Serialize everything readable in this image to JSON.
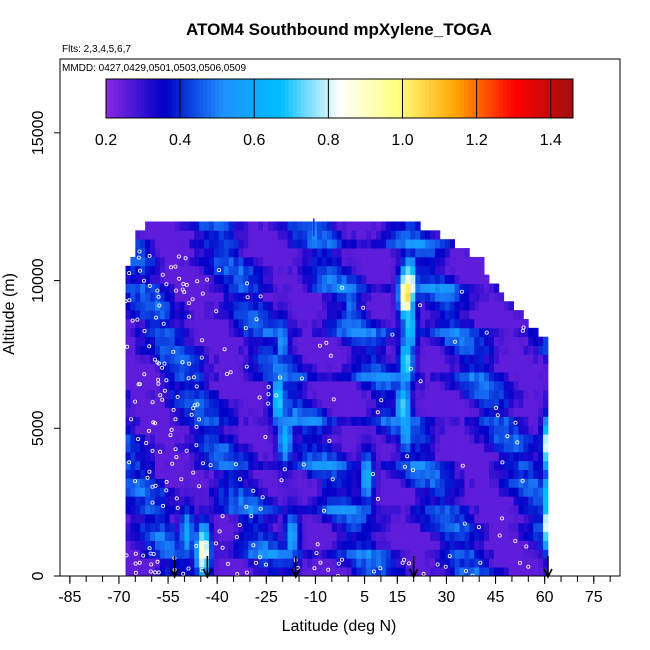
{
  "chart_data": {
    "type": "heatmap",
    "title": "ATOM4 Southbound mpXylene_TOGA",
    "flights_note": "Flts: 2,3,4,5,6,7",
    "dates_note": "MMDD: 0427,0429,0501,0503,0506,0509",
    "xlabel": "Latitude (deg N)",
    "ylabel": "Altitude (m)",
    "xlim": [
      -88,
      83
    ],
    "ylim": [
      0,
      17500
    ],
    "x_ticks": [
      -85,
      -70,
      -55,
      -40,
      -25,
      -10,
      5,
      15,
      30,
      45,
      60,
      75
    ],
    "x_tick_labels": [
      "-85",
      "-70",
      "-55",
      "-40",
      "-25",
      "-10",
      "5",
      "15",
      "30",
      "45",
      "60",
      "75"
    ],
    "x_minor_step": 5,
    "y_ticks": [
      0,
      5000,
      10000,
      15000
    ],
    "y_tick_labels": [
      "0",
      "5000",
      "10000",
      "15000"
    ],
    "colorbar": {
      "min": 0.2,
      "max": 1.46,
      "ticks": [
        0.2,
        0.4,
        0.6,
        0.8,
        1.0,
        1.2,
        1.4
      ],
      "tick_labels": [
        "0.2",
        "0.4",
        "0.6",
        "0.8",
        "1.0",
        "1.2",
        "1.4"
      ],
      "colors": [
        "#8a2be2",
        "#0000c8",
        "#1e90ff",
        "#00bfff",
        "#ffffff",
        "#ffff80",
        "#ffa500",
        "#ff0000",
        "#a01010"
      ]
    },
    "domain_lat_range": [
      -68,
      61
    ],
    "domain_top_alt": 11800,
    "hotspots": [
      {
        "lat": 17,
        "alt": 9400,
        "value": 1.1
      },
      {
        "lat": 18,
        "alt": 9700,
        "value": 0.95
      },
      {
        "lat": 18,
        "alt": 8300,
        "value": 0.72
      },
      {
        "lat": 17,
        "alt": 7100,
        "value": 0.75
      },
      {
        "lat": 16,
        "alt": 5600,
        "value": 0.72
      },
      {
        "lat": 17,
        "alt": 4800,
        "value": 0.6
      },
      {
        "lat": -22,
        "alt": 5800,
        "value": 0.72
      },
      {
        "lat": -20,
        "alt": 4500,
        "value": 0.65
      },
      {
        "lat": -21,
        "alt": 7800,
        "value": 0.55
      },
      {
        "lat": -18,
        "alt": 1200,
        "value": 0.6
      },
      {
        "lat": -45,
        "alt": 700,
        "value": 0.95
      },
      {
        "lat": -50,
        "alt": 1300,
        "value": 0.6
      },
      {
        "lat": 61,
        "alt": 4300,
        "value": 1.15
      },
      {
        "lat": 61,
        "alt": 1600,
        "value": 1.15
      },
      {
        "lat": 60,
        "alt": 2500,
        "value": 0.7
      },
      {
        "lat": 5,
        "alt": 3200,
        "value": 0.62
      },
      {
        "lat": 0,
        "alt": 9000,
        "value": 0.5
      }
    ],
    "arrow_lats": [
      -53,
      -43,
      -16,
      20,
      61
    ],
    "tick_mark_lat": -10.5,
    "tick_mark_alt": 12100
  }
}
